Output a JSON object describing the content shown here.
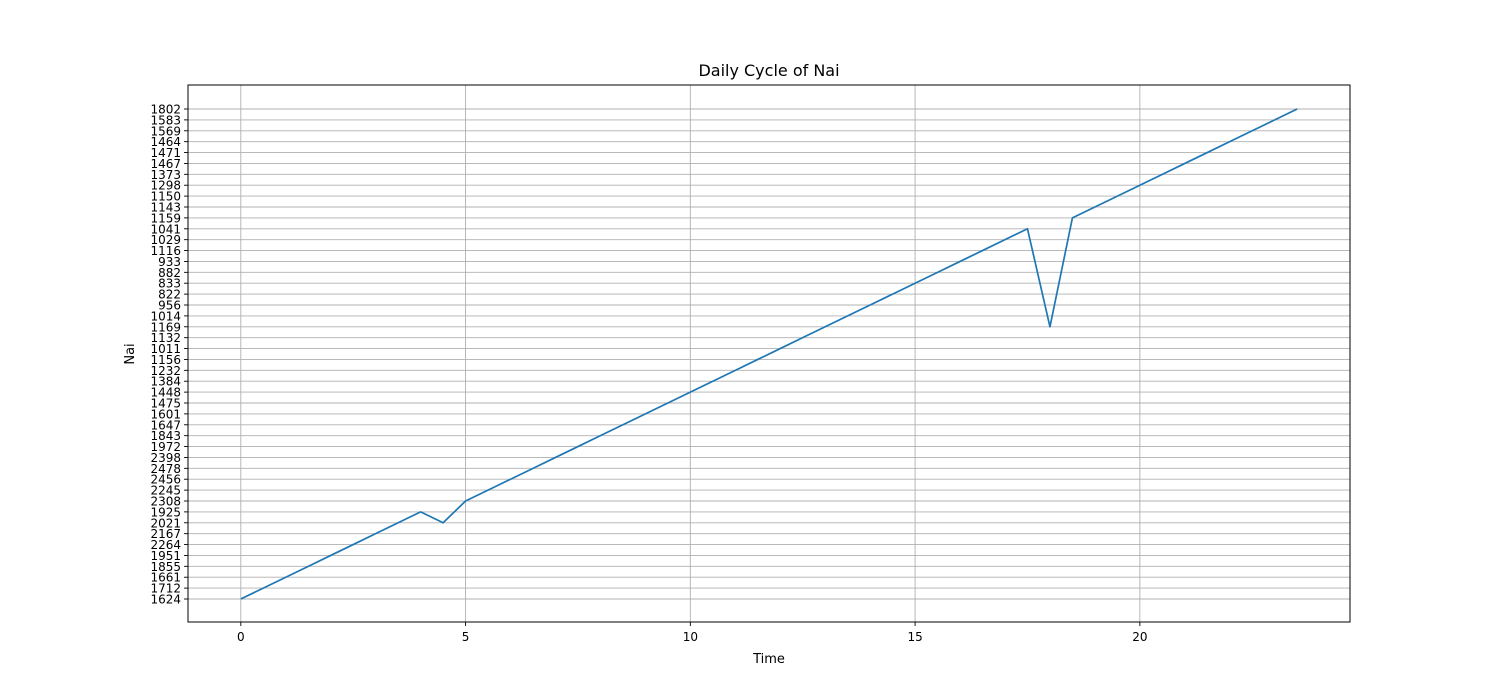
{
  "chart_data": {
    "type": "line",
    "title": "Daily Cycle of Nai",
    "xlabel": "Time",
    "ylabel": "Nai",
    "x_ticks": [
      "0",
      "5",
      "10",
      "15",
      "20"
    ],
    "xlim": [
      -1.175,
      24.675
    ],
    "grid": true,
    "legend": "none",
    "y_is_categorical": true,
    "y_categories": [
      "1624",
      "1712",
      "1661",
      "1855",
      "1951",
      "2264",
      "2167",
      "2021",
      "1925",
      "2308",
      "2245",
      "2456",
      "2478",
      "2398",
      "1972",
      "1843",
      "1647",
      "1601",
      "1475",
      "1448",
      "1384",
      "1232",
      "1156",
      "1011",
      "1132",
      "1169",
      "1014",
      "956",
      "822",
      "833",
      "882",
      "933",
      "1116",
      "1029",
      "1041",
      "1159",
      "1143",
      "1150",
      "1298",
      "1373",
      "1467",
      "1471",
      "1464",
      "1569",
      "1583",
      "1802"
    ],
    "series": [
      {
        "color": "#1f77b4",
        "x": [
          0,
          0.5,
          1,
          1.5,
          2,
          2.5,
          3,
          3.5,
          4,
          4.5,
          5,
          5.5,
          6,
          6.5,
          7,
          7.5,
          8,
          8.5,
          9,
          9.5,
          10,
          10.5,
          11,
          11.5,
          12,
          12.5,
          13,
          13.5,
          14,
          14.5,
          15,
          15.5,
          16,
          16.5,
          17,
          17.5,
          18,
          18.5,
          19,
          19.5,
          20,
          20.5,
          21,
          21.5,
          22,
          22.5,
          23,
          23.5
        ],
        "values": [
          "1624",
          "1712",
          "1661",
          "1855",
          "1951",
          "2264",
          "2167",
          "2021",
          "1925",
          "2021",
          "2308",
          "2245",
          "2456",
          "2478",
          "2398",
          "1972",
          "1843",
          "1647",
          "1601",
          "1475",
          "1448",
          "1384",
          "1232",
          "1156",
          "1011",
          "1132",
          "1169",
          "1014",
          "956",
          "822",
          "833",
          "882",
          "933",
          "1116",
          "1029",
          "1041",
          "1169",
          "1159",
          "1143",
          "1150",
          "1298",
          "1373",
          "1467",
          "1471",
          "1464",
          "1569",
          "1583",
          "1802"
        ]
      }
    ]
  }
}
